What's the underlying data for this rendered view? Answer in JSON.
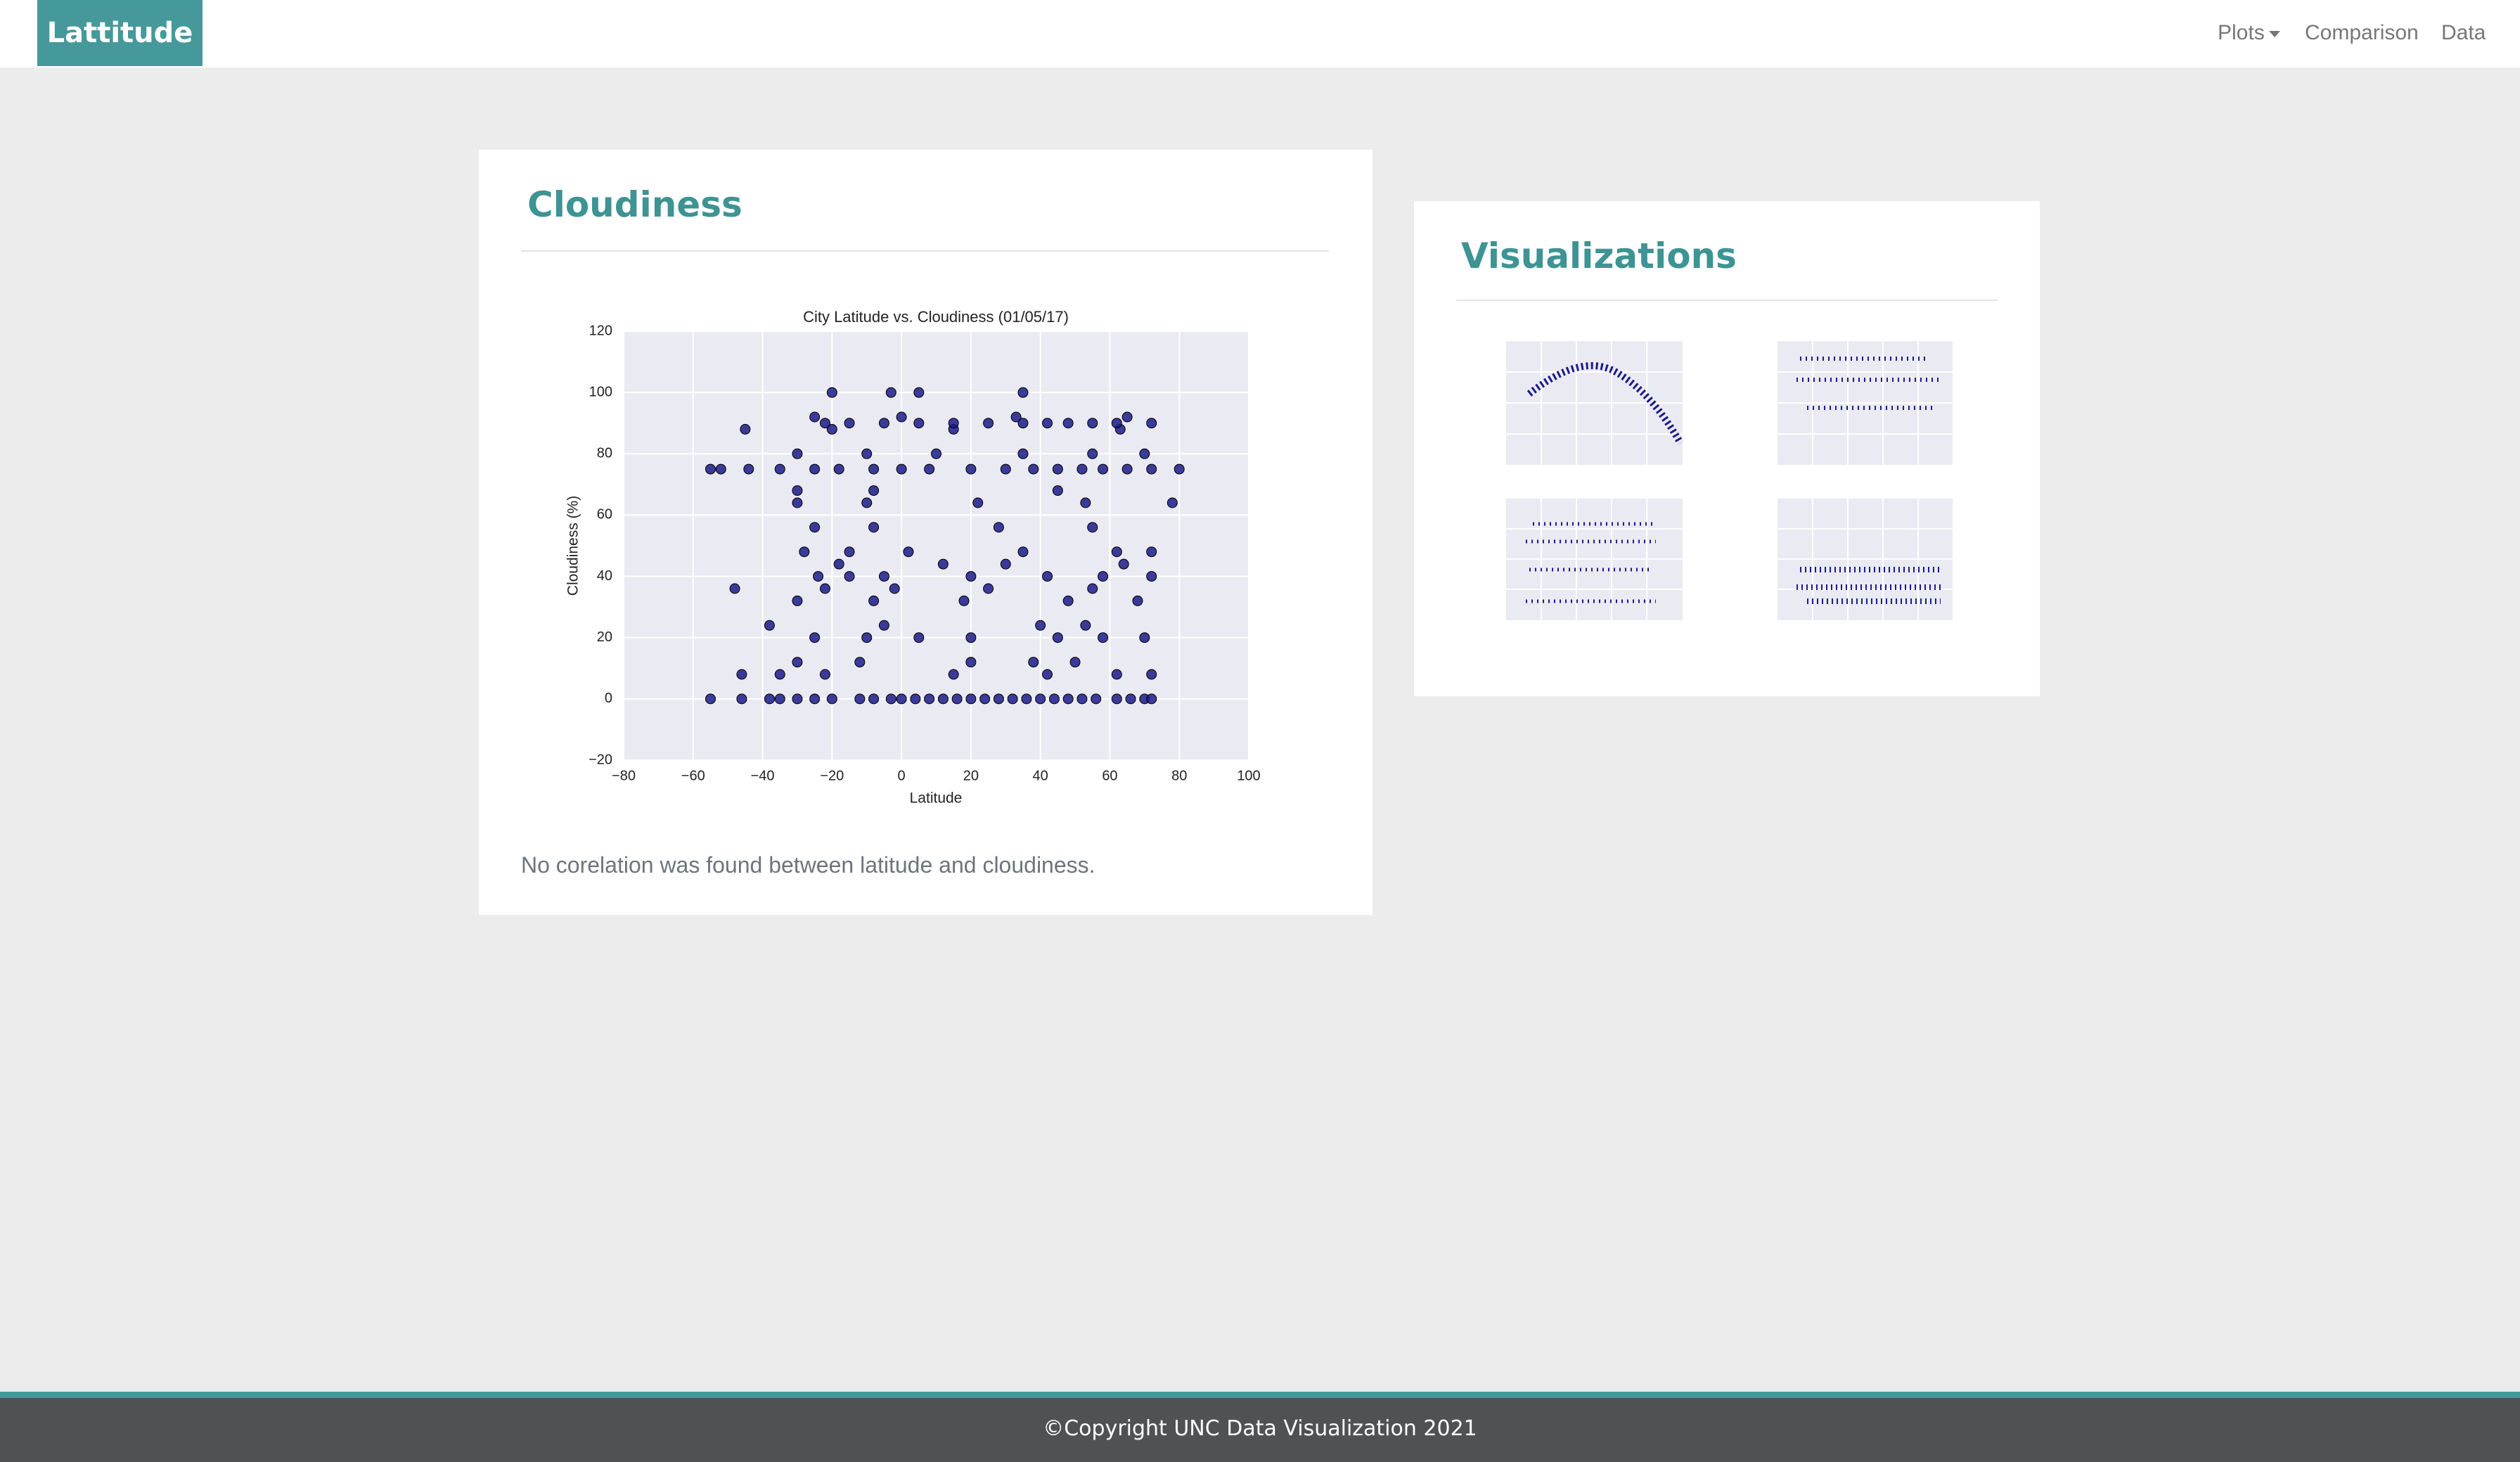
{
  "navbar": {
    "brand": "Lattitude",
    "links": [
      "Plots",
      "Comparison",
      "Data"
    ]
  },
  "main_card": {
    "title": "Cloudiness",
    "chart_data": {
      "type": "scatter",
      "title": "City Latitude vs. Cloudiness (01/05/17)",
      "xlabel": "Latitude",
      "ylabel": "Cloudiness (%)",
      "color": "#1b1b8a",
      "grid": true,
      "xlim": [
        -80,
        100
      ],
      "ylim": [
        -20,
        120
      ],
      "xticks": [
        {
          "value": -80,
          "label": "−80"
        },
        {
          "value": -60,
          "label": "−60"
        },
        {
          "value": -40,
          "label": "−40"
        },
        {
          "value": -20,
          "label": "−20"
        },
        0,
        20,
        40,
        60,
        80,
        100
      ],
      "yticks": [
        {
          "value": -20,
          "label": "−20"
        },
        0,
        20,
        40,
        60,
        80,
        100,
        120
      ],
      "points": [
        [
          -55,
          0
        ],
        [
          -46,
          0
        ],
        [
          -38,
          0
        ],
        [
          -35,
          0
        ],
        [
          -30,
          0
        ],
        [
          -25,
          0
        ],
        [
          -20,
          0
        ],
        [
          -12,
          0
        ],
        [
          -8,
          0
        ],
        [
          -3,
          0
        ],
        [
          0,
          0
        ],
        [
          4,
          0
        ],
        [
          8,
          0
        ],
        [
          12,
          0
        ],
        [
          16,
          0
        ],
        [
          20,
          0
        ],
        [
          24,
          0
        ],
        [
          28,
          0
        ],
        [
          32,
          0
        ],
        [
          36,
          0
        ],
        [
          40,
          0
        ],
        [
          44,
          0
        ],
        [
          48,
          0
        ],
        [
          52,
          0
        ],
        [
          56,
          0
        ],
        [
          62,
          0
        ],
        [
          66,
          0
        ],
        [
          70,
          0
        ],
        [
          72,
          0
        ],
        [
          -46,
          8
        ],
        [
          -35,
          8
        ],
        [
          -22,
          8
        ],
        [
          15,
          8
        ],
        [
          42,
          8
        ],
        [
          62,
          8
        ],
        [
          72,
          8
        ],
        [
          -30,
          12
        ],
        [
          -12,
          12
        ],
        [
          20,
          12
        ],
        [
          38,
          12
        ],
        [
          50,
          12
        ],
        [
          -25,
          20
        ],
        [
          -10,
          20
        ],
        [
          5,
          20
        ],
        [
          20,
          20
        ],
        [
          45,
          20
        ],
        [
          58,
          20
        ],
        [
          70,
          20
        ],
        [
          -38,
          24
        ],
        [
          -5,
          24
        ],
        [
          40,
          24
        ],
        [
          53,
          24
        ],
        [
          -30,
          32
        ],
        [
          -8,
          32
        ],
        [
          18,
          32
        ],
        [
          48,
          32
        ],
        [
          68,
          32
        ],
        [
          -48,
          36
        ],
        [
          -22,
          36
        ],
        [
          -2,
          36
        ],
        [
          25,
          36
        ],
        [
          55,
          36
        ],
        [
          -24,
          40
        ],
        [
          -15,
          40
        ],
        [
          -5,
          40
        ],
        [
          20,
          40
        ],
        [
          42,
          40
        ],
        [
          58,
          40
        ],
        [
          72,
          40
        ],
        [
          -18,
          44
        ],
        [
          12,
          44
        ],
        [
          30,
          44
        ],
        [
          64,
          44
        ],
        [
          -28,
          48
        ],
        [
          -15,
          48
        ],
        [
          2,
          48
        ],
        [
          35,
          48
        ],
        [
          62,
          48
        ],
        [
          72,
          48
        ],
        [
          -25,
          56
        ],
        [
          -8,
          56
        ],
        [
          28,
          56
        ],
        [
          55,
          56
        ],
        [
          -30,
          64
        ],
        [
          -10,
          64
        ],
        [
          22,
          64
        ],
        [
          53,
          64
        ],
        [
          78,
          64
        ],
        [
          -30,
          68
        ],
        [
          -8,
          68
        ],
        [
          45,
          68
        ],
        [
          -55,
          75
        ],
        [
          -52,
          75
        ],
        [
          -44,
          75
        ],
        [
          -35,
          75
        ],
        [
          -25,
          75
        ],
        [
          -18,
          75
        ],
        [
          -8,
          75
        ],
        [
          0,
          75
        ],
        [
          8,
          75
        ],
        [
          20,
          75
        ],
        [
          30,
          75
        ],
        [
          38,
          75
        ],
        [
          45,
          75
        ],
        [
          52,
          75
        ],
        [
          58,
          75
        ],
        [
          65,
          75
        ],
        [
          72,
          75
        ],
        [
          80,
          75
        ],
        [
          -30,
          80
        ],
        [
          -10,
          80
        ],
        [
          10,
          80
        ],
        [
          35,
          80
        ],
        [
          55,
          80
        ],
        [
          70,
          80
        ],
        [
          -45,
          88
        ],
        [
          -20,
          88
        ],
        [
          15,
          88
        ],
        [
          63,
          88
        ],
        [
          -22,
          90
        ],
        [
          -15,
          90
        ],
        [
          -5,
          90
        ],
        [
          5,
          90
        ],
        [
          15,
          90
        ],
        [
          25,
          90
        ],
        [
          35,
          90
        ],
        [
          42,
          90
        ],
        [
          48,
          90
        ],
        [
          55,
          90
        ],
        [
          62,
          90
        ],
        [
          72,
          90
        ],
        [
          -25,
          92
        ],
        [
          0,
          92
        ],
        [
          33,
          92
        ],
        [
          65,
          92
        ],
        [
          -20,
          100
        ],
        [
          -3,
          100
        ],
        [
          5,
          100
        ],
        [
          35,
          100
        ]
      ]
    },
    "caption": "No corelation was found between latitude and cloudiness."
  },
  "side_card": {
    "title": "Visualizations"
  },
  "footer": {
    "text": "©Copyright UNC Data Visualization 2021"
  }
}
